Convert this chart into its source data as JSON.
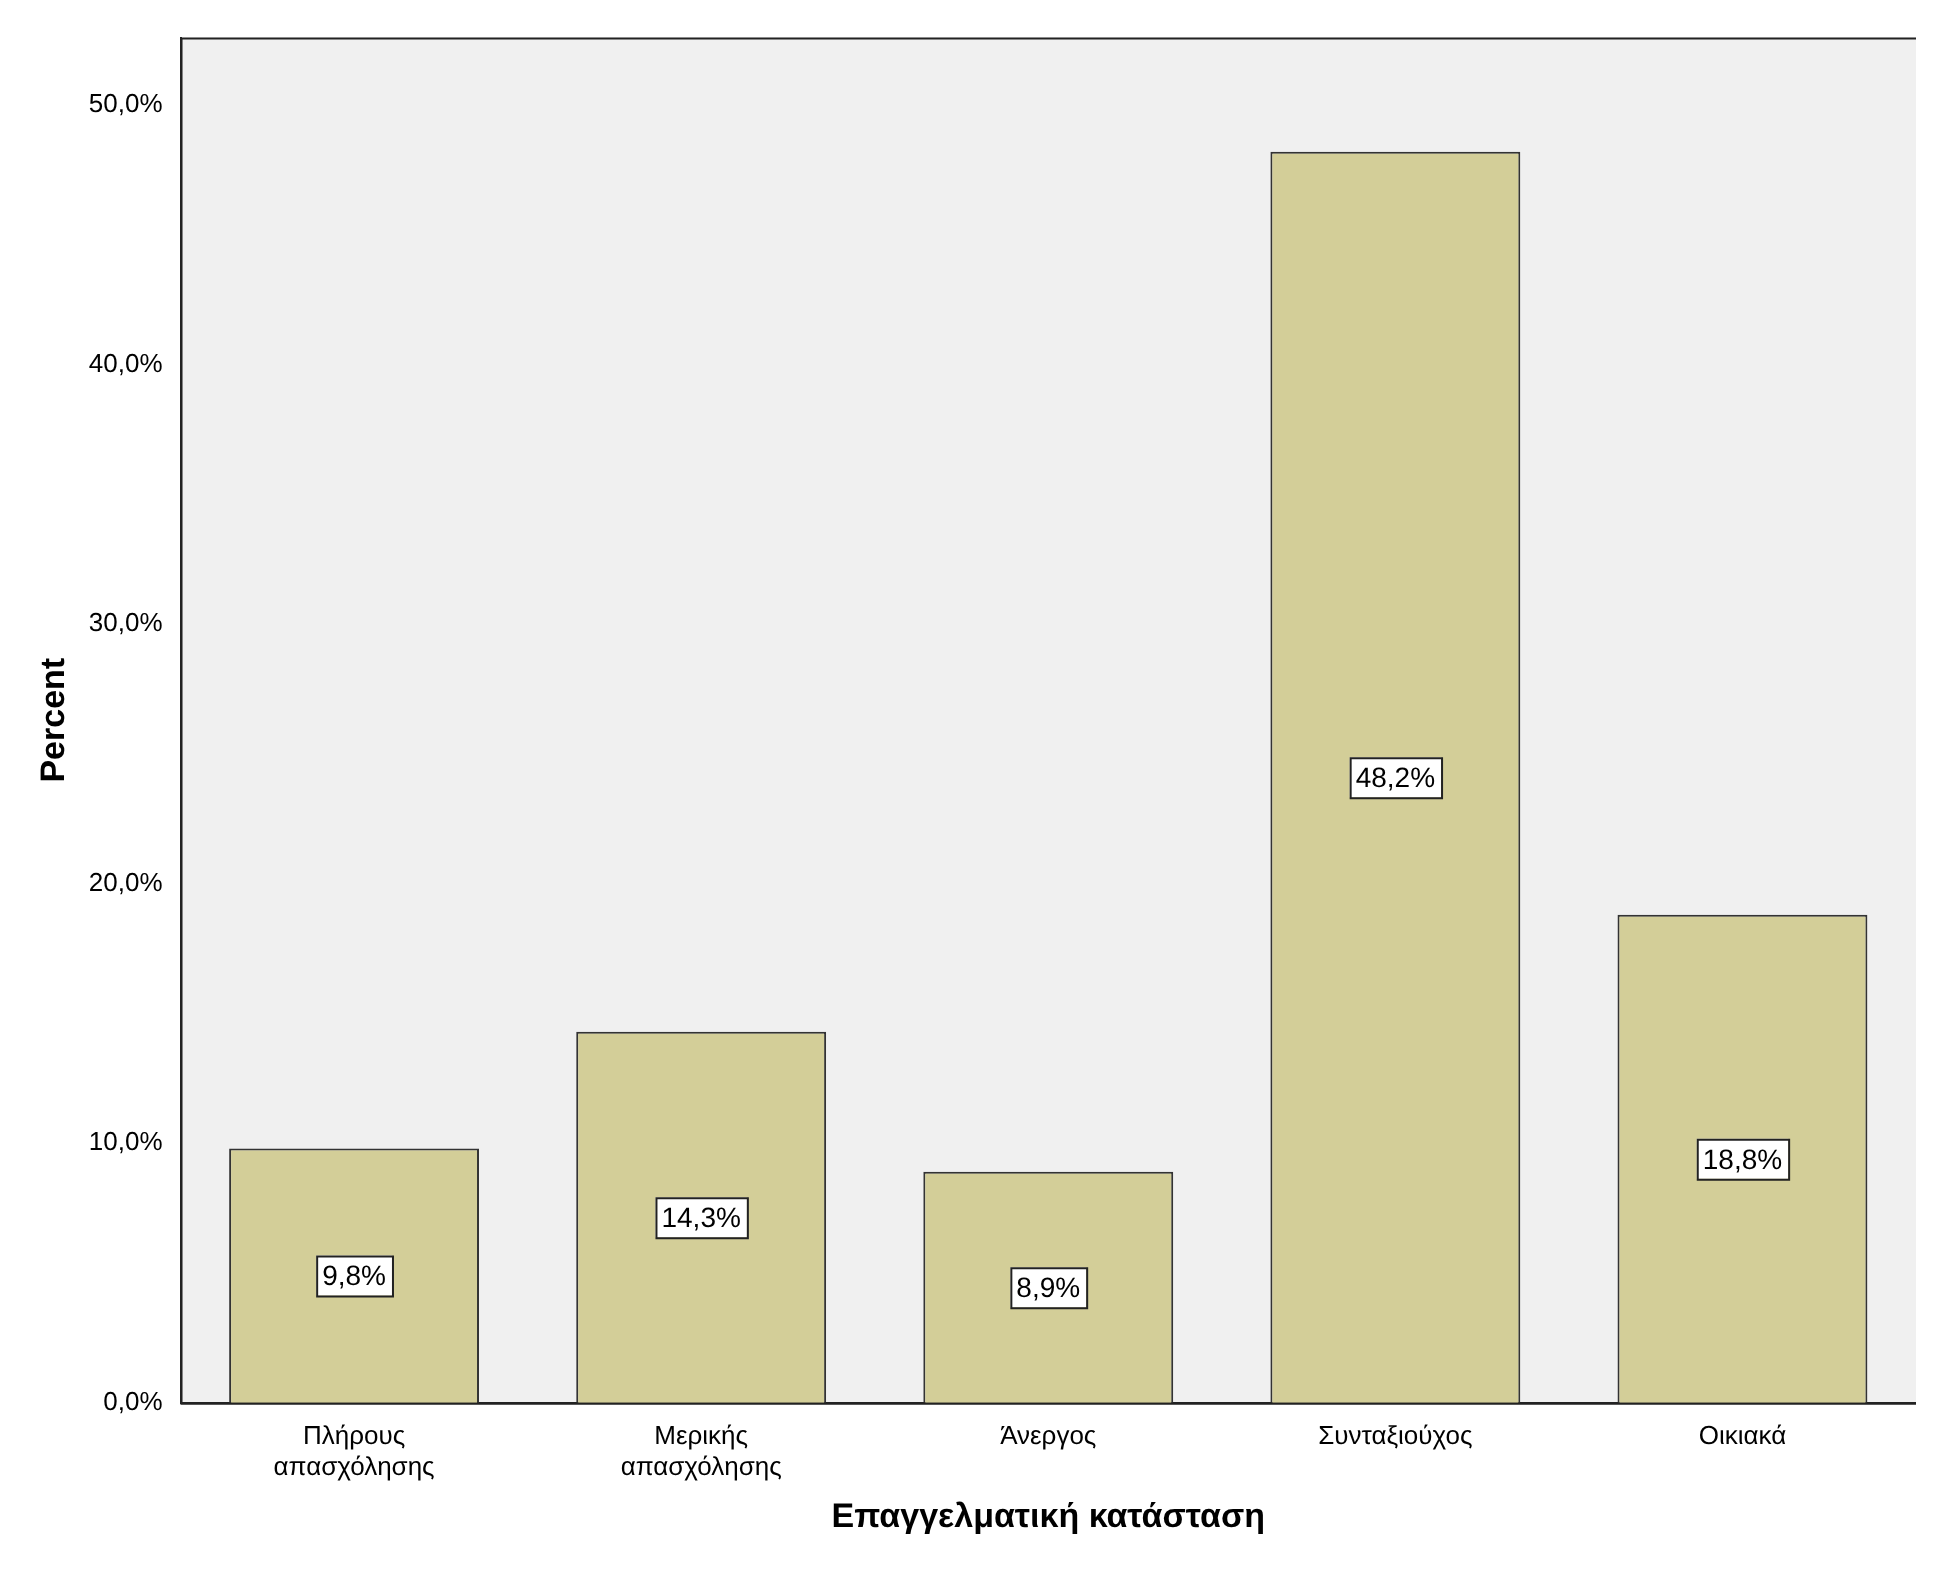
{
  "chart_data": {
    "type": "bar",
    "xlabel": "Επαγγελματική κατάσταση",
    "ylabel": "Percent",
    "categories": [
      "Πλήρους απασχόλησης",
      "Μερικής απασχόλησης",
      "Άνεργος",
      "Συνταξιούχος",
      "Οικιακά"
    ],
    "values": [
      9.8,
      14.3,
      8.9,
      48.2,
      18.8
    ],
    "value_labels": [
      "9,8%",
      "14,3%",
      "8,9%",
      "48,2%",
      "18,8%"
    ],
    "color": "#d3ce98",
    "ylim": [
      0,
      52.6
    ],
    "yticks": [
      {
        "value": 0,
        "label": "0,0%"
      },
      {
        "value": 10,
        "label": "10,0%"
      },
      {
        "value": 20,
        "label": "20,0%"
      },
      {
        "value": 30,
        "label": "30,0%"
      },
      {
        "value": 40,
        "label": "40,0%"
      },
      {
        "value": 50,
        "label": "50,0%"
      }
    ],
    "grid": false,
    "legend": false
  }
}
